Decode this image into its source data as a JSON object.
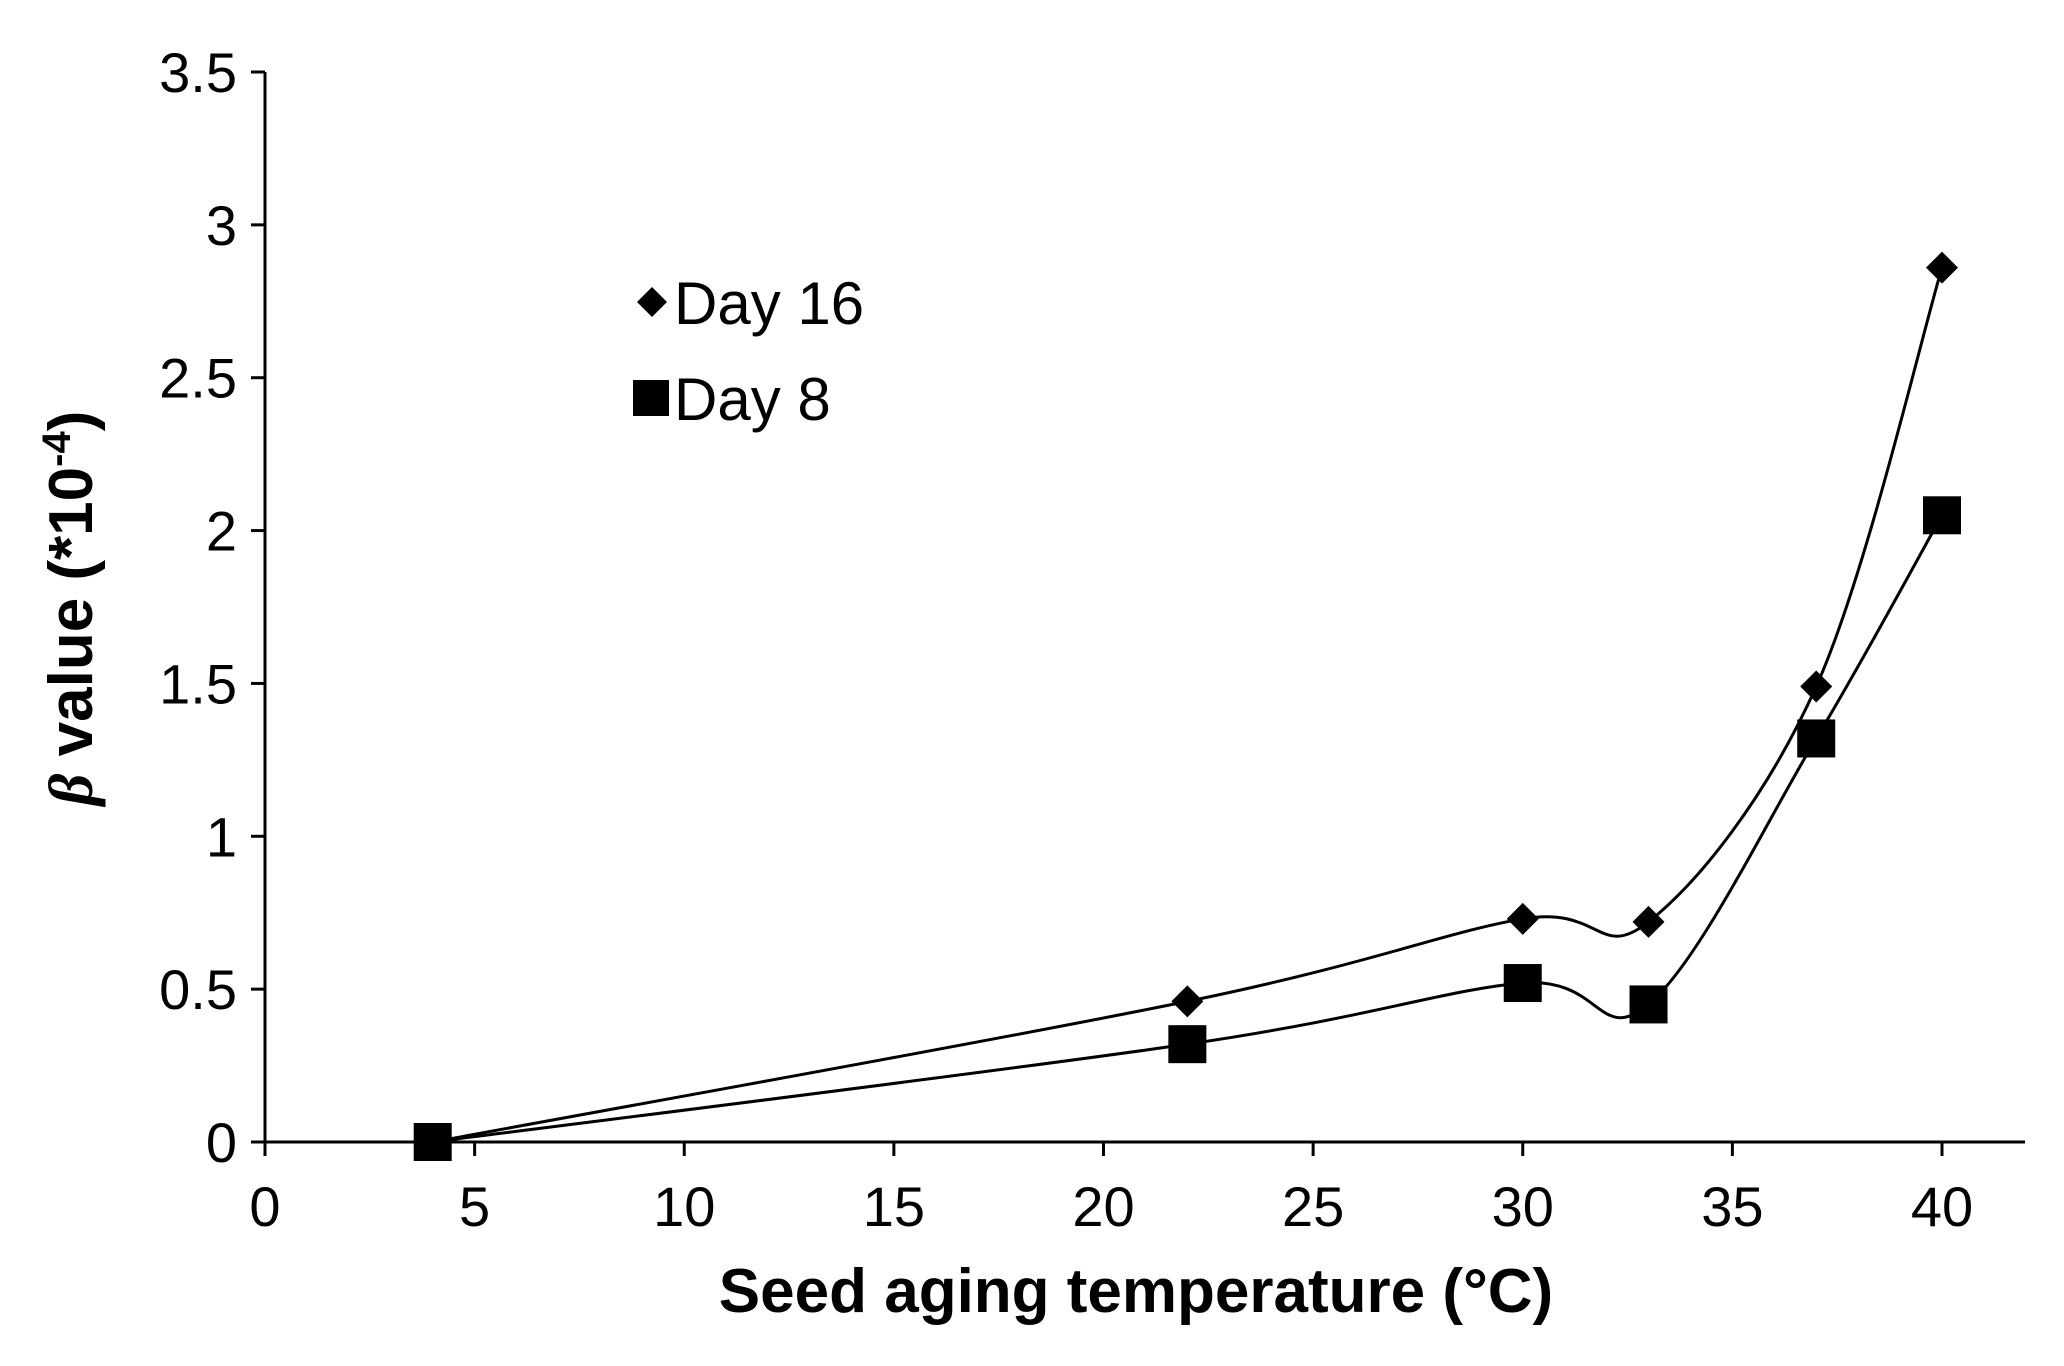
{
  "chart_data": {
    "type": "line",
    "title": "",
    "xlabel": "Seed aging temperature (°C)",
    "ylabel": {
      "symbol": "β",
      "text": " value (*10",
      "exponent": "-4",
      "close": ")"
    },
    "xlim": [
      0,
      42
    ],
    "ylim": [
      0,
      3.5
    ],
    "xticks": [
      0,
      5,
      10,
      15,
      20,
      25,
      30,
      35,
      40
    ],
    "xtick_labels": [
      "0",
      "5",
      "10",
      "15",
      "20",
      "25",
      "30",
      "35",
      "40"
    ],
    "yticks": [
      0,
      0.5,
      1,
      1.5,
      2,
      2.5,
      3,
      3.5
    ],
    "ytick_labels": [
      "0",
      "0.5",
      "1",
      "1.5",
      "2",
      "2.5",
      "3",
      "3.5"
    ],
    "grid": false,
    "legend_position": "upper-left",
    "smooth": true,
    "series": [
      {
        "name": "Day 16",
        "marker": "diamond",
        "x": [
          4,
          22,
          30,
          33,
          37,
          40
        ],
        "y": [
          0,
          0.46,
          0.73,
          0.72,
          1.49,
          2.86
        ]
      },
      {
        "name": "Day 8",
        "marker": "square",
        "x": [
          4,
          22,
          30,
          33,
          37,
          40
        ],
        "y": [
          0,
          0.32,
          0.52,
          0.45,
          1.32,
          2.05
        ]
      }
    ]
  }
}
